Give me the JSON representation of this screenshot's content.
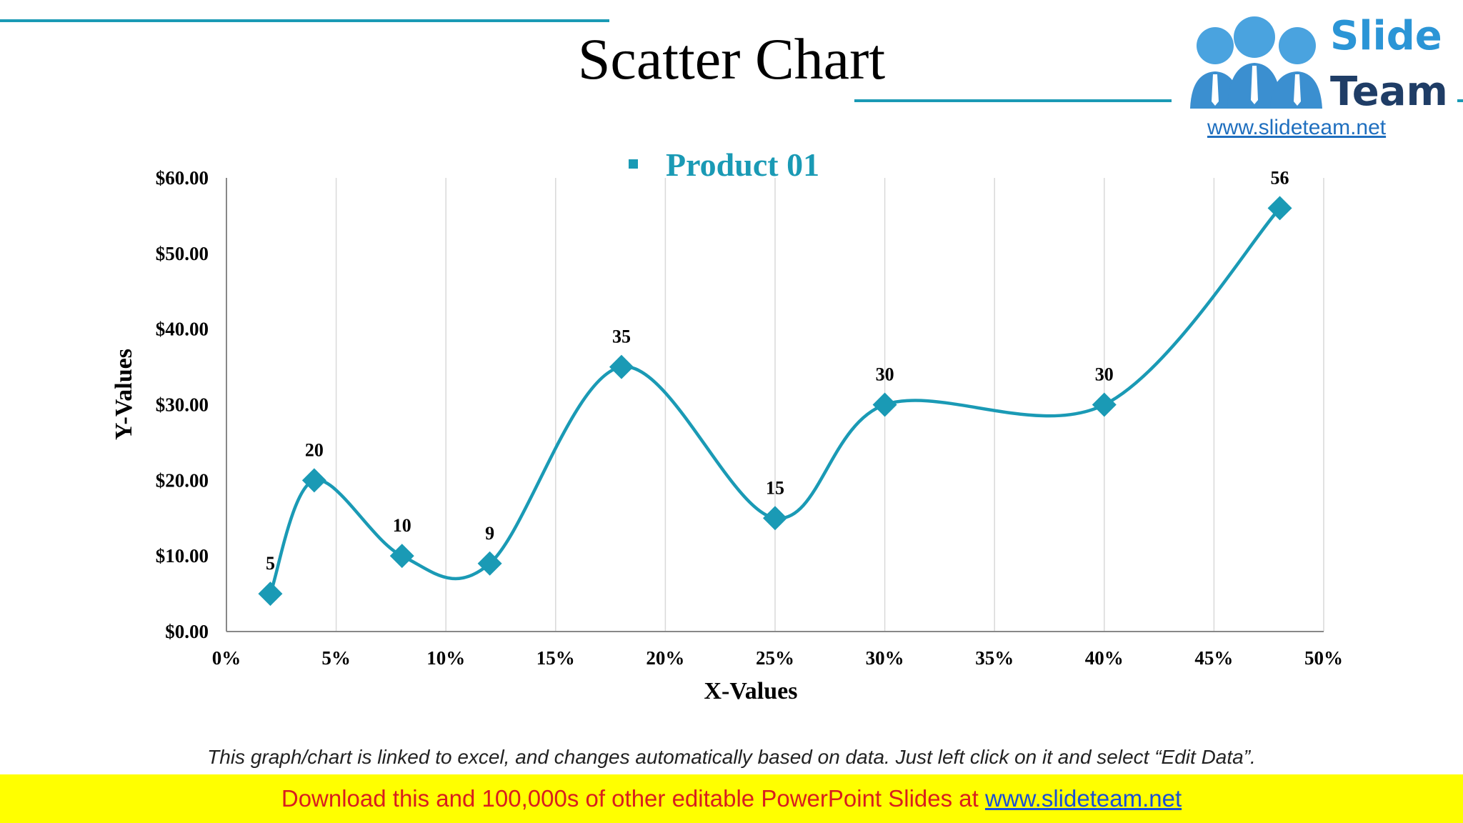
{
  "slide": {
    "title": "Scatter Chart",
    "caption": "This graph/chart is linked to excel, and changes automatically based on data. Just left click on it and select “Edit Data”.",
    "banner_text": "Download this and 100,000s of other editable PowerPoint Slides at ",
    "banner_link": "www.slideteam.net"
  },
  "logo": {
    "line1": "Slide",
    "line2": "Team",
    "url": "www.slideteam.net"
  },
  "colors": {
    "accent": "#1a9ab5",
    "marker": "#1a9ab5",
    "grid": "#d9d9d9"
  },
  "chart_data": {
    "type": "scatter",
    "title": "",
    "xlabel": "X-Values",
    "ylabel": "Y-Values",
    "xlim": [
      0,
      50
    ],
    "ylim": [
      0,
      60
    ],
    "x_ticks": [
      "0%",
      "5%",
      "10%",
      "15%",
      "20%",
      "25%",
      "30%",
      "35%",
      "40%",
      "45%",
      "50%"
    ],
    "y_ticks": [
      "$0.00",
      "$10.00",
      "$20.00",
      "$30.00",
      "$40.00",
      "$50.00",
      "$60.00"
    ],
    "legend": [
      "Product 01"
    ],
    "legend_position": "top",
    "grid": "vertical",
    "smooth_line": true,
    "series": [
      {
        "name": "Product 01",
        "x": [
          2,
          4,
          8,
          12,
          18,
          25,
          30,
          40,
          48
        ],
        "y": [
          5,
          20,
          10,
          9,
          35,
          15,
          30,
          30,
          56
        ],
        "labels": [
          "5",
          "20",
          "10",
          "9",
          "35",
          "15",
          "30",
          "30",
          "56"
        ]
      }
    ]
  }
}
